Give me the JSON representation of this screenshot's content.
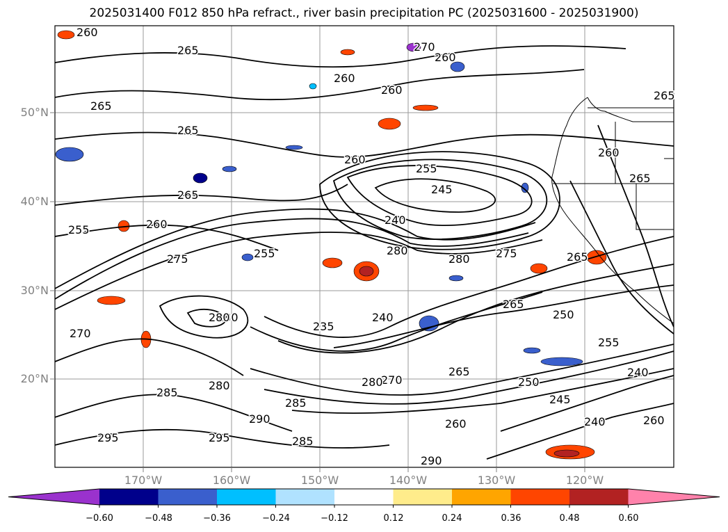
{
  "title": "2025031400 F012 850 hPa refract., river basin precipitation PC (2025031600 - 2025031900)",
  "lat_labels": [
    "50°N",
    "40°N",
    "30°N",
    "20°N"
  ],
  "lon_labels": [
    "170°W",
    "160°W",
    "150°W",
    "140°W",
    "130°W",
    "120°W"
  ],
  "colorbar": {
    "ticks": [
      "−0.60",
      "−0.48",
      "−0.36",
      "−0.24",
      "−0.12",
      "0.12",
      "0.24",
      "0.36",
      "0.48",
      "0.60"
    ],
    "colors": [
      "#9a32cd",
      "#00008b",
      "#3a5fcd",
      "#00bfff",
      "#b0e2ff",
      "#ffffff",
      "#ffec8b",
      "#ffa500",
      "#ff4500",
      "#b22222",
      "#ff82ab"
    ]
  },
  "contour_labels": [
    "260",
    "265",
    "260",
    "260",
    "260",
    "265",
    "265",
    "265",
    "260",
    "255",
    "245",
    "240",
    "260",
    "265",
    "255",
    "275",
    "280",
    "280",
    "275",
    "280",
    "235",
    "240",
    "265",
    "250",
    "255",
    "240",
    "245",
    "240",
    "260",
    "265",
    "270",
    "280",
    "285",
    "290",
    "295",
    "285",
    "280",
    "270",
    "265",
    "260",
    "250",
    "265",
    "280",
    "285",
    "290",
    "295",
    "255",
    "260",
    "270"
  ]
}
